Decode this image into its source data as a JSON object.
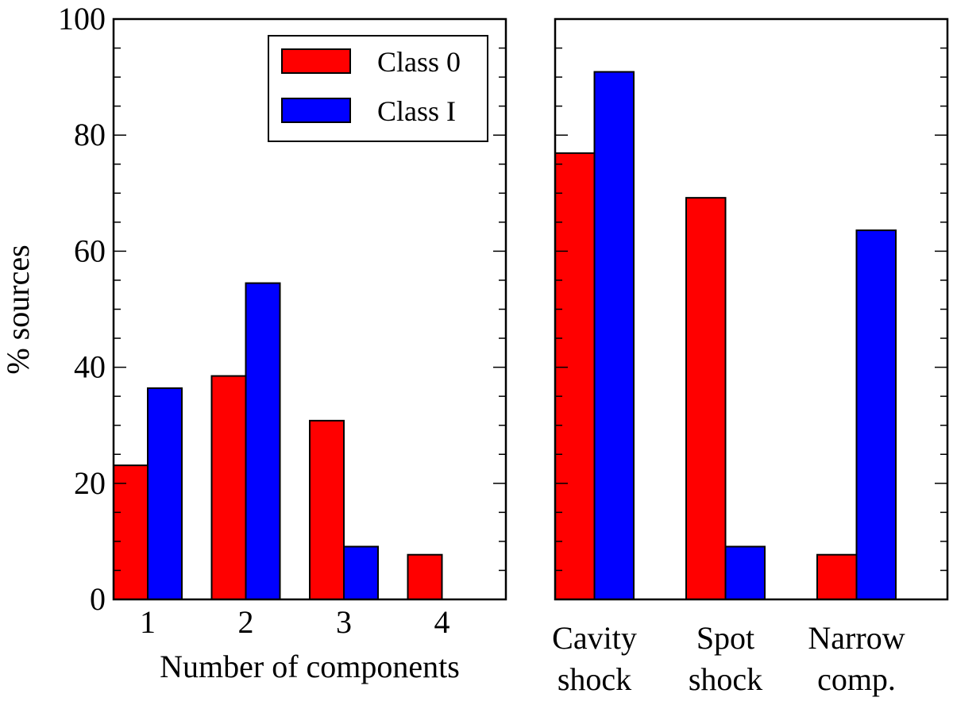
{
  "colors": {
    "class0": "#ff0000",
    "class1": "#0000ff",
    "axis": "#000000"
  },
  "chart_data": [
    {
      "type": "bar",
      "title": "",
      "xlabel": "Number of components",
      "ylabel": "% sources",
      "ylim": [
        0,
        100
      ],
      "yticks": [
        "0",
        "20",
        "40",
        "60",
        "80",
        "100"
      ],
      "categories": [
        "1",
        "2",
        "3",
        "4"
      ],
      "legend": {
        "placement": "top-right",
        "entries": [
          "Class 0",
          "Class I"
        ]
      },
      "series": [
        {
          "name": "Class 0",
          "values": [
            23.1,
            38.5,
            30.8,
            7.7
          ]
        },
        {
          "name": "Class I",
          "values": [
            36.4,
            54.5,
            9.1,
            0
          ]
        }
      ]
    },
    {
      "type": "bar",
      "title": "",
      "xlabel": "",
      "ylabel": "",
      "ylim": [
        0,
        100
      ],
      "categories": [
        [
          "Cavity",
          "shock"
        ],
        [
          "Spot",
          "shock"
        ],
        [
          "Narrow",
          "comp."
        ]
      ],
      "series": [
        {
          "name": "Class 0",
          "values": [
            76.9,
            69.2,
            7.7
          ]
        },
        {
          "name": "Class I",
          "values": [
            90.9,
            9.1,
            63.6
          ]
        }
      ]
    }
  ]
}
